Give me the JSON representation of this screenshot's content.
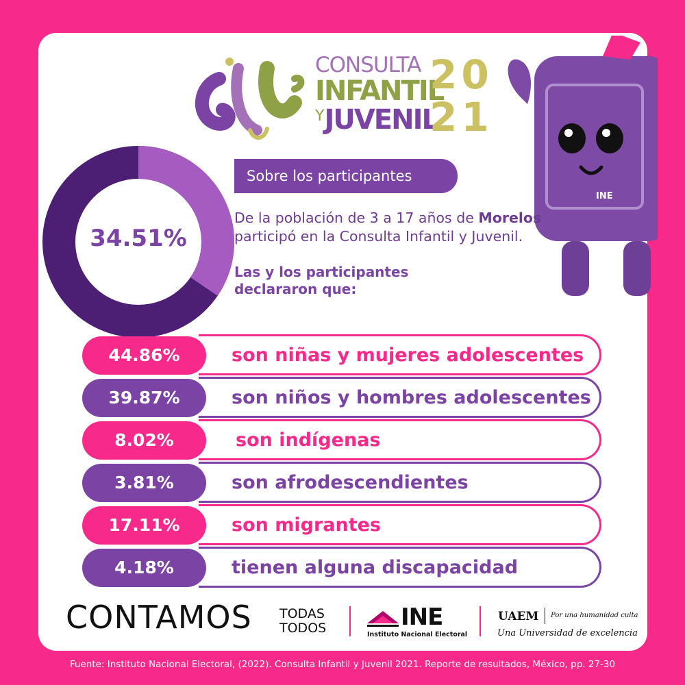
{
  "colors": {
    "pink": "#f72a8b",
    "purple": "#7a43a4",
    "olive": "#8ea146",
    "gold": "#cbc062"
  },
  "logo": {
    "line1": "CONSULTA",
    "line2": "INFANTIL",
    "line3_prefix": "Y",
    "line3": "JUVENIL",
    "year_top": "20",
    "year_bottom": "21"
  },
  "donut": {
    "value_text": "34.51%",
    "fraction": 0.3451
  },
  "section_title": "Sobre los participantes",
  "intro": {
    "before": "De la población de 3 a 17 años de ",
    "highlight": "Morelos",
    "after": " participó en la Consulta Infantil y Juvenil."
  },
  "declared": "Las y los participantes declararon que:",
  "stats": [
    {
      "value": "44.86%",
      "label": "son niñas y mujeres adolescentes"
    },
    {
      "value": "39.87%",
      "label": "son niños y hombres adolescentes"
    },
    {
      "value": "8.02%",
      "label": "son indígenas"
    },
    {
      "value": "3.81%",
      "label": "son afrodescendientes"
    },
    {
      "value": "17.11%",
      "label": "son migrantes"
    },
    {
      "value": "4.18%",
      "label": "tienen alguna discapacidad"
    }
  ],
  "mascot_badge": "INE",
  "footer": {
    "contamos": "CONTAMOS",
    "todas": "TODAS",
    "todos": "TODOS",
    "ine": "INE",
    "ine_sub": "Instituto Nacional Electoral",
    "uaem": "UAEM",
    "uaem_tag": "Por una humanidad culta",
    "uaem_sub": "Una Universidad de excelencia"
  },
  "source": "Fuente: Instituto Nacional Electoral, (2022). Consulta Infantil y Juvenil 2021. Reporte de resultados, México, pp. 27-30"
}
